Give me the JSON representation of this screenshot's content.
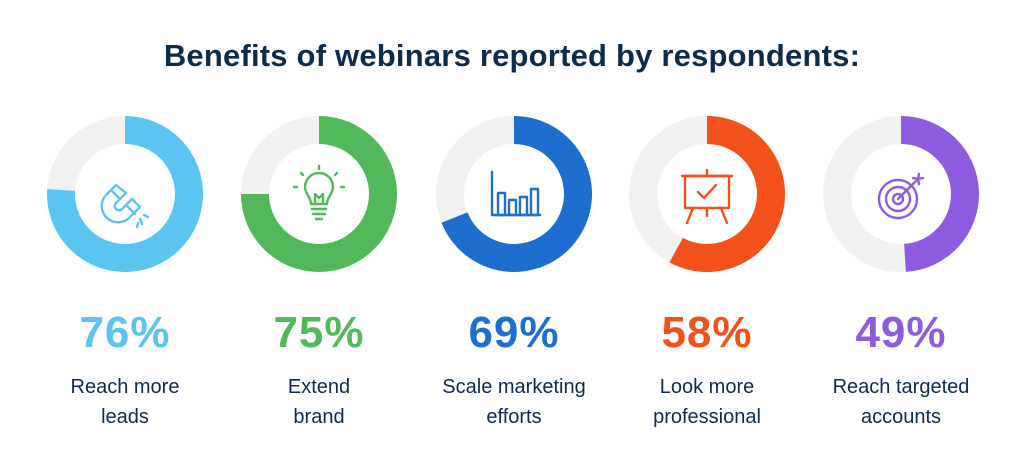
{
  "title": "Benefits of webinars reported by respondents:",
  "colors": {
    "track": "#f2f2f2",
    "text": "#0e2b4b"
  },
  "chart_data": {
    "type": "donut",
    "title": "Benefits of webinars reported by respondents:",
    "items": [
      {
        "value": 76,
        "value_label": "76%",
        "label_line1": "Reach more",
        "label_line2": "leads",
        "color": "#5bc4f1",
        "icon": "magnet-icon"
      },
      {
        "value": 75,
        "value_label": "75%",
        "label_line1": "Extend",
        "label_line2": "brand",
        "color": "#52b95b",
        "icon": "lightbulb-icon"
      },
      {
        "value": 69,
        "value_label": "69%",
        "label_line1": "Scale marketing",
        "label_line2": "efforts",
        "color": "#1d6ecf",
        "icon": "bar-chart-icon"
      },
      {
        "value": 58,
        "value_label": "58%",
        "label_line1": "Look more",
        "label_line2": "professional",
        "color": "#f2511b",
        "icon": "presentation-board-icon"
      },
      {
        "value": 49,
        "value_label": "49%",
        "label_line1": "Reach targeted",
        "label_line2": "accounts",
        "color": "#8d5ae0",
        "icon": "target-icon"
      }
    ]
  }
}
